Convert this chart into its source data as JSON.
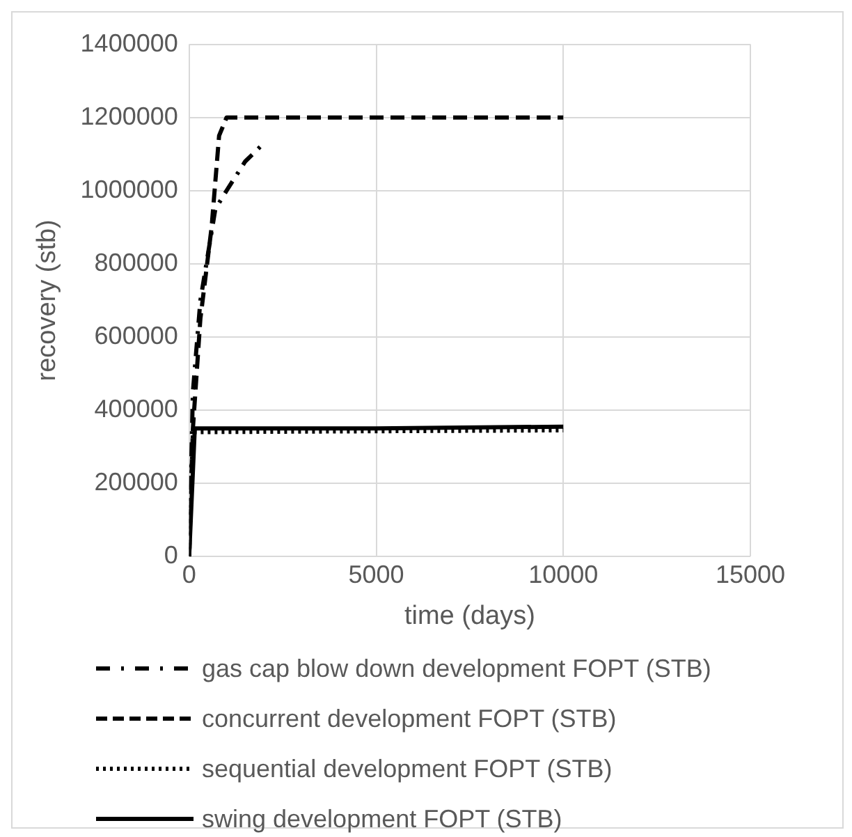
{
  "chart_data": {
    "type": "line",
    "xlabel": "time (days)",
    "ylabel": "recovery (stb)",
    "xlim": [
      0,
      15000
    ],
    "xticks": [
      0,
      5000,
      10000,
      15000
    ],
    "ylim": [
      0,
      1400000
    ],
    "yticks": [
      0,
      200000,
      400000,
      600000,
      800000,
      1000000,
      1200000,
      1400000
    ],
    "grid": true,
    "legend": "bottom",
    "marker": "none",
    "series": [
      {
        "name": "gas cap blow down development FOPT  (STB)",
        "color": "#000000",
        "line_style": "dashdot",
        "x": [
          0,
          100,
          300,
          700,
          1000,
          1500,
          2000
        ],
        "values": [
          0,
          450000,
          700000,
          950000,
          1000000,
          1080000,
          1130000
        ]
      },
      {
        "name": "concurrent development FOPT  (STB)",
        "color": "#000000",
        "line_style": "dashed",
        "x": [
          0,
          100,
          300,
          600,
          800,
          1000,
          10000
        ],
        "values": [
          0,
          350000,
          650000,
          900000,
          1150000,
          1200000,
          1200000
        ]
      },
      {
        "name": "sequential development FOPT  (STB)",
        "color": "#000000",
        "line_style": "dotted",
        "x": [
          0,
          100,
          10000
        ],
        "values": [
          0,
          340000,
          345000
        ]
      },
      {
        "name": "swing development FOPT  (STB)",
        "color": "#000000",
        "line_style": "solid",
        "x": [
          0,
          150,
          5000,
          10000
        ],
        "values": [
          0,
          350000,
          350000,
          355000
        ]
      }
    ]
  }
}
